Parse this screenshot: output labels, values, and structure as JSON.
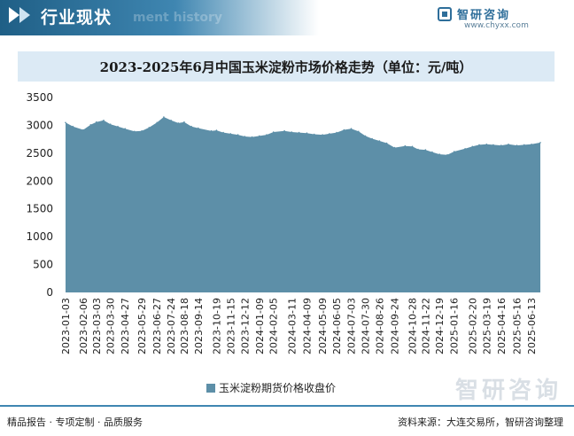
{
  "header": {
    "title": "行业现状",
    "ghost_text": "ment history"
  },
  "logo": {
    "name": "智研咨询",
    "url": "www.chyxx.com"
  },
  "chart_title": "2023-2025年6月中国玉米淀粉市场价格走势（单位：元/吨）",
  "legend_label": "玉米淀粉期货价格收盘价",
  "footer": {
    "left": "精品报告 · 专项定制 · 品质服务",
    "right": "资料来源：大连交易所，智研咨询整理"
  },
  "watermark": "智研咨询",
  "colors": {
    "area_fill": "#5d8fa8",
    "header_gradient_start": "#1f5f86",
    "title_band": "#dceaf5"
  },
  "chart_data": {
    "type": "area",
    "title": "2023-2025年6月中国玉米淀粉市场价格走势（单位：元/吨）",
    "xlabel": "",
    "ylabel": "",
    "ylim": [
      0,
      3500
    ],
    "yticks": [
      0,
      500,
      1000,
      1500,
      2000,
      2500,
      3000,
      3500
    ],
    "grid": false,
    "legend": "bottom",
    "x_ticks": [
      "2023-01-03",
      "2023-02-06",
      "2023-03-03",
      "2023-03-30",
      "2023-04-27",
      "2023-05-29",
      "2023-06-27",
      "2023-07-24",
      "2023-08-18",
      "2023-09-14",
      "2023-10-19",
      "2023-11-15",
      "2023-12-12",
      "2024-01-09",
      "2024-02-05",
      "2024-03-11",
      "2024-04-09",
      "2024-05-09",
      "2024-06-05",
      "2024-07-03",
      "2024-07-30",
      "2024-08-26",
      "2024-09-24",
      "2024-10-28",
      "2024-11-22",
      "2024-12-19",
      "2025-01-16",
      "2025-02-20",
      "2025-03-19",
      "2025-04-16",
      "2025-05-16",
      "2025-06-13"
    ],
    "series": [
      {
        "name": "玉米淀粉期货价格收盘价",
        "x": [
          "2023-01-03",
          "2023-01-17",
          "2023-02-06",
          "2023-02-20",
          "2023-03-03",
          "2023-03-17",
          "2023-03-30",
          "2023-04-13",
          "2023-04-27",
          "2023-05-15",
          "2023-05-29",
          "2023-06-12",
          "2023-06-27",
          "2023-07-10",
          "2023-07-24",
          "2023-08-07",
          "2023-08-18",
          "2023-09-01",
          "2023-09-14",
          "2023-10-09",
          "2023-10-19",
          "2023-11-01",
          "2023-11-15",
          "2023-11-29",
          "2023-12-12",
          "2023-12-26",
          "2024-01-09",
          "2024-01-23",
          "2024-02-05",
          "2024-02-26",
          "2024-03-11",
          "2024-03-25",
          "2024-04-09",
          "2024-04-23",
          "2024-05-09",
          "2024-05-22",
          "2024-06-05",
          "2024-06-19",
          "2024-07-03",
          "2024-07-17",
          "2024-07-30",
          "2024-08-12",
          "2024-08-26",
          "2024-09-09",
          "2024-09-24",
          "2024-10-14",
          "2024-10-28",
          "2024-11-08",
          "2024-11-22",
          "2024-12-05",
          "2024-12-19",
          "2025-01-03",
          "2025-01-16",
          "2025-02-06",
          "2025-02-20",
          "2025-03-05",
          "2025-03-19",
          "2025-04-01",
          "2025-04-16",
          "2025-04-30",
          "2025-05-16",
          "2025-05-30",
          "2025-06-13",
          "2025-06-30"
        ],
        "y": [
          3050,
          2980,
          2920,
          3010,
          3060,
          3090,
          3020,
          2980,
          2940,
          2890,
          2900,
          2960,
          3050,
          3150,
          3090,
          3040,
          3060,
          2980,
          2950,
          2900,
          2910,
          2870,
          2850,
          2830,
          2800,
          2790,
          2810,
          2830,
          2880,
          2900,
          2880,
          2870,
          2860,
          2840,
          2830,
          2850,
          2870,
          2920,
          2940,
          2890,
          2810,
          2760,
          2720,
          2680,
          2600,
          2630,
          2620,
          2570,
          2560,
          2520,
          2480,
          2470,
          2530,
          2580,
          2620,
          2650,
          2660,
          2650,
          2640,
          2660,
          2640,
          2650,
          2660,
          2690
        ]
      }
    ]
  }
}
